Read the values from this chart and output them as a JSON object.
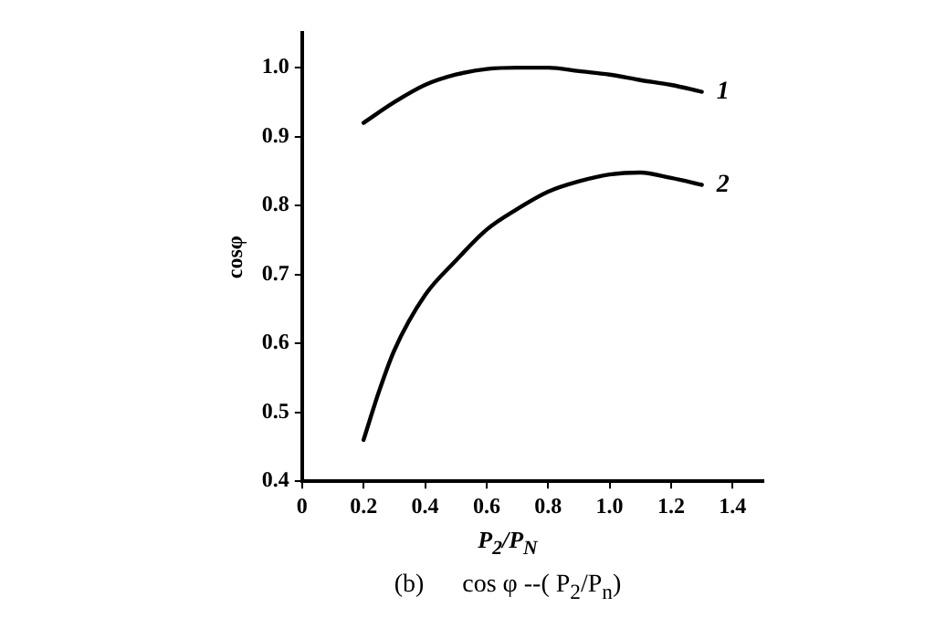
{
  "chart_data": {
    "type": "line",
    "xlabel": "P$_{2}$/P$_{N}$",
    "ylabel": "cosφ",
    "annotations": [
      "(b)      cos φ --( P$_{2}$/P$_{n}$)"
    ],
    "xlim": [
      0,
      1.5
    ],
    "ylim": [
      0.4,
      1.05
    ],
    "xticks": [
      0,
      0.2,
      0.4,
      0.6,
      0.8,
      {
        "value": 1,
        "label": "1.0"
      },
      1.2,
      1.4
    ],
    "yticks": [
      0.4,
      0.5,
      0.6,
      0.7,
      0.8,
      0.9,
      {
        "value": 1,
        "label": "1.0"
      }
    ],
    "grid": false,
    "legend": false,
    "marker": "none",
    "line_style": "solid",
    "series": [
      {
        "name": "1",
        "color": "#000000",
        "x": [
          0.2,
          0.3,
          0.4,
          0.5,
          0.6,
          0.7,
          0.8,
          0.9,
          1.0,
          1.1,
          1.2,
          1.3
        ],
        "values": [
          0.92,
          0.95,
          0.975,
          0.99,
          0.998,
          1.0,
          1.0,
          0.995,
          0.99,
          0.982,
          0.975,
          0.965
        ]
      },
      {
        "name": "2",
        "color": "#000000",
        "x": [
          0.2,
          0.25,
          0.3,
          0.4,
          0.5,
          0.6,
          0.7,
          0.8,
          0.9,
          1.0,
          1.1,
          1.2,
          1.3
        ],
        "values": [
          0.46,
          0.53,
          0.59,
          0.67,
          0.72,
          0.765,
          0.795,
          0.82,
          0.835,
          0.845,
          0.848,
          0.84,
          0.83
        ]
      }
    ]
  }
}
